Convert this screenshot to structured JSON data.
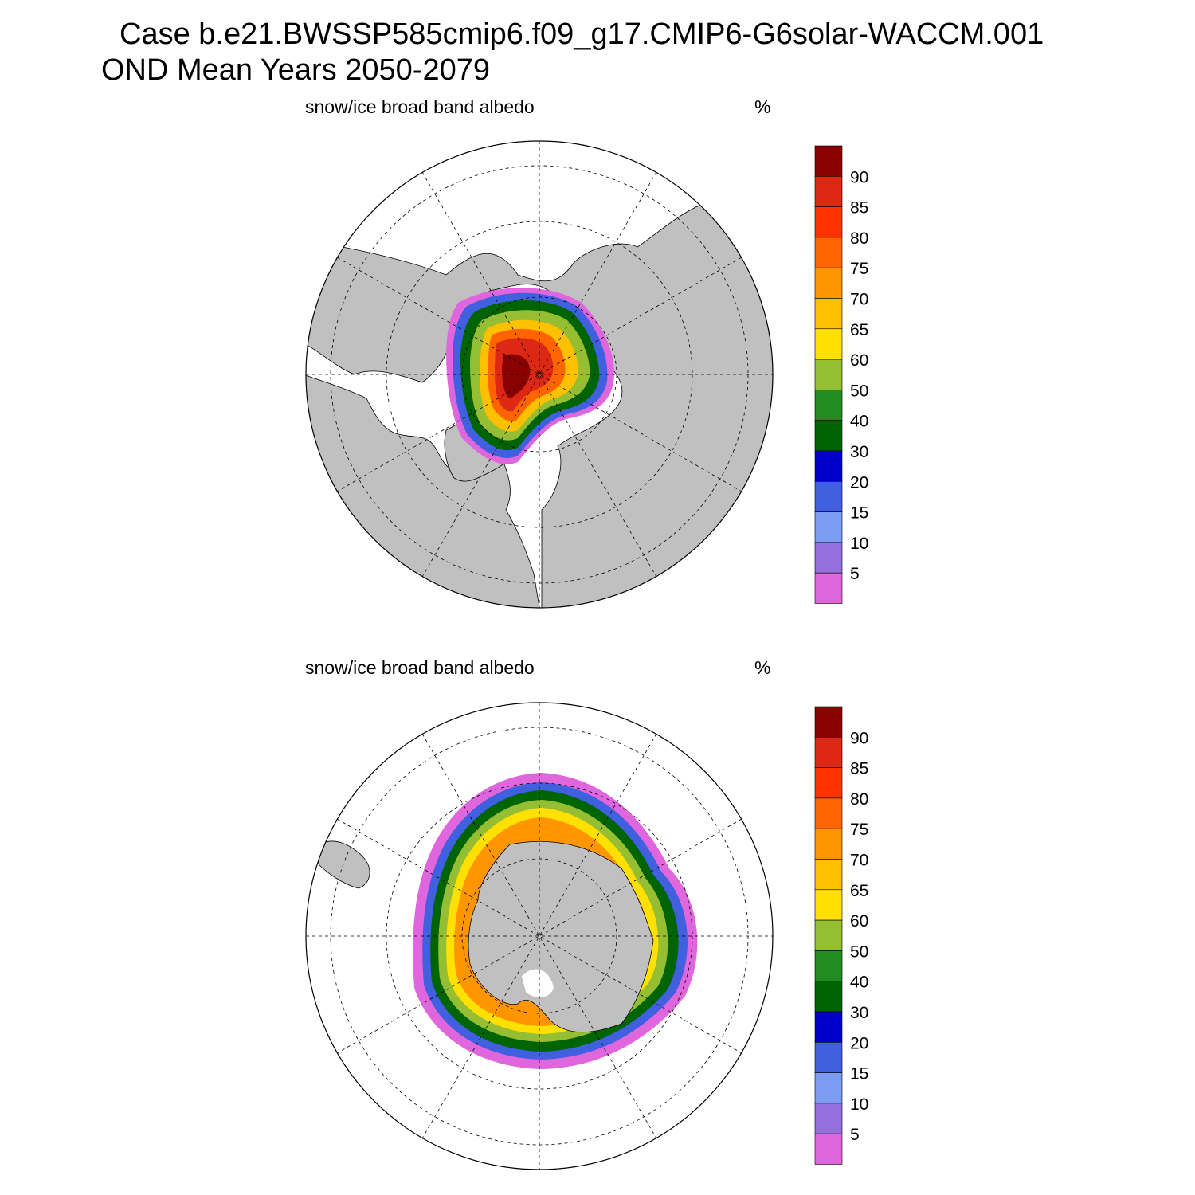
{
  "header": {
    "case_line": "Case b.e21.BWSSP585cmip6.f09_g17.CMIP6-G6solar-WACCM.001",
    "period_line": "OND Mean   Years 2050-2079"
  },
  "panels": [
    {
      "hemisphere": "north",
      "variable_label": "snow/ice broad band albedo",
      "units_label": "%"
    },
    {
      "hemisphere": "south",
      "variable_label": "snow/ice broad band albedo",
      "units_label": "%"
    }
  ],
  "colorbar": {
    "tick_labels": [
      "5",
      "10",
      "15",
      "20",
      "30",
      "40",
      "50",
      "60",
      "65",
      "70",
      "75",
      "80",
      "85",
      "90"
    ],
    "colors": [
      "#e066dd",
      "#9370db",
      "#7b9cf0",
      "#4060e0",
      "#0000c8",
      "#006400",
      "#228b22",
      "#96be32",
      "#ffe000",
      "#ffc000",
      "#ff9600",
      "#ff6400",
      "#ff3200",
      "#dc2814",
      "#8b0000"
    ]
  },
  "colors": {
    "land": "#c0c0c0",
    "ocean": "#ffffff",
    "grid": "#000000"
  }
}
